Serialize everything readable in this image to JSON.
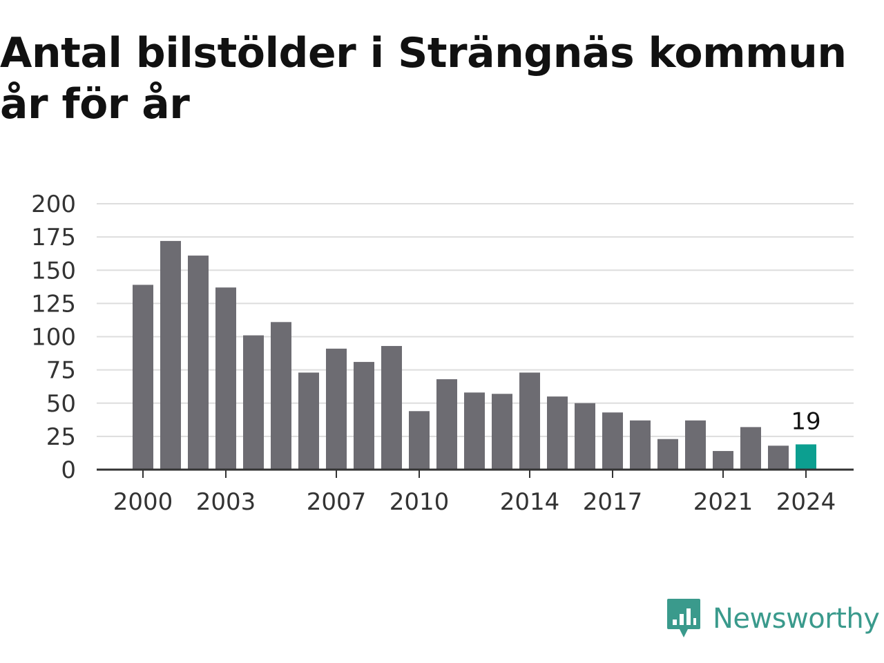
{
  "chart_data": {
    "type": "bar",
    "title": "Antal bilstölder i Strängnäs kommun år för år",
    "x": [
      2000,
      2001,
      2002,
      2003,
      2004,
      2005,
      2006,
      2007,
      2008,
      2009,
      2010,
      2011,
      2012,
      2013,
      2014,
      2015,
      2016,
      2017,
      2018,
      2019,
      2020,
      2021,
      2022,
      2023,
      2024
    ],
    "values": [
      139,
      172,
      161,
      137,
      101,
      111,
      73,
      91,
      81,
      93,
      44,
      68,
      58,
      57,
      73,
      55,
      50,
      43,
      37,
      23,
      37,
      14,
      32,
      18,
      19
    ],
    "x_tick_labels": [
      "2000",
      "2003",
      "2007",
      "2010",
      "2014",
      "2017",
      "2021",
      "2024"
    ],
    "y_ticks": [
      0,
      25,
      50,
      75,
      100,
      125,
      150,
      175,
      200
    ],
    "ylim": [
      0,
      200
    ],
    "grid": true,
    "highlight": {
      "x": 2024,
      "label": "19"
    },
    "colors": {
      "bar": "#6d6c72",
      "highlight": "#0c9f90",
      "grid": "#dddddd",
      "axis": "#333333"
    }
  },
  "branding": {
    "logo_text": "Newsworthy",
    "logo_icon": "newsworthy-bar-chart-icon",
    "logo_color": "#3a9a8c"
  }
}
